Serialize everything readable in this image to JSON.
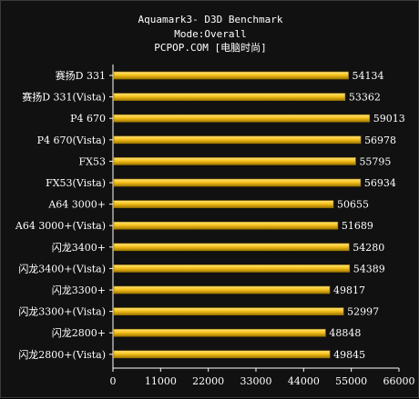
{
  "chart_data": {
    "type": "bar",
    "orientation": "horizontal",
    "title_lines": [
      "Aquamark3- D3D Benchmark",
      "Mode:Overall",
      "PCPOP.COM [电脑时尚]"
    ],
    "categories": [
      "赛扬D 331",
      "赛扬D 331(Vista)",
      "P4 670",
      "P4 670(Vista)",
      "FX53",
      "FX53(Vista)",
      "A64 3000+",
      "A64 3000+(Vista)",
      "闪龙3400+",
      "闪龙3400+(Vista)",
      "闪龙3300+",
      "闪龙3300+(Vista)",
      "闪龙2800+",
      "闪龙2800+(Vista)"
    ],
    "values": [
      54134,
      53362,
      59013,
      56978,
      55795,
      56934,
      50655,
      51689,
      54280,
      54389,
      49817,
      52997,
      48848,
      49845
    ],
    "value_labels": [
      "54134",
      "53362",
      "59013",
      "56978",
      "55795",
      "56934",
      "50655",
      "51689",
      "54280",
      "54389",
      "49817",
      "52997",
      "48848",
      "49845"
    ],
    "xlim": [
      0,
      66000
    ],
    "x_ticks": [
      0,
      11000,
      22000,
      33000,
      44000,
      55000,
      66000
    ],
    "x_tick_labels": [
      "0",
      "11000",
      "22000",
      "33000",
      "44000",
      "55000",
      "66000"
    ],
    "grid": false,
    "legend": "none",
    "colors": {
      "bar": "#f7c21c",
      "bar_highlight": "#ffe680",
      "bar_edge": "#a07800",
      "axis": "#ffffff",
      "text": "#ffffff",
      "background": "#111111"
    }
  }
}
